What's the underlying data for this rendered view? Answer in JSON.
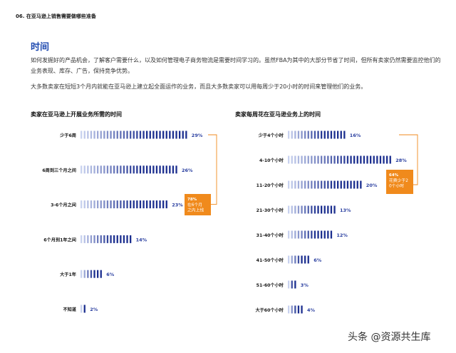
{
  "header": {
    "section_label": "06. 在亚马逊上销售需要做哪些准备"
  },
  "article": {
    "heading": "时间",
    "paragraph1": "如何发掘好的产品机会，了解客户需要什么，以及如何管理电子商务物流是需要时间学习的。虽然FBA为其中的大部分节省了时间，但所有卖家仍然需要监控他们的业务表现、库存、广告，保持竞争优势。",
    "paragraph2": "大多数卖家在短短3个月内就能在亚马逊上建立起全面运作的业务，而且大多数卖家可以用每周少于20小时的时间来管理他们的业务。"
  },
  "colors": {
    "heading": "#1f4ab0",
    "bar_dark": "#1c2f8f",
    "bar_light": "#c9d2ef",
    "accent": "#f08a1c",
    "value_text": "#2a3fa0"
  },
  "chart_data": [
    {
      "type": "bar",
      "title": "卖家在亚马逊上开展业务所需的时间",
      "categories": [
        "少于6周",
        "6周到三个月之间",
        "3-6个月之间",
        "6个月到1年之间",
        "大于1年",
        "不知道"
      ],
      "values": [
        29,
        26,
        23,
        14,
        6,
        2
      ],
      "value_labels": [
        "29%",
        "26%",
        "23%",
        "14%",
        "6%",
        "2%"
      ],
      "callout": {
        "value": "78%",
        "text": "在6个月之内上线"
      }
    },
    {
      "type": "bar",
      "title": "卖家每周花在亚马逊业务上的时间",
      "categories": [
        "少于4个小时",
        "4-10个小时",
        "11-20个小时",
        "21-30个小时",
        "31-40个小时",
        "41-50个小时",
        "51-60个小时",
        "大于60个小时"
      ],
      "values": [
        16,
        28,
        20,
        13,
        12,
        6,
        3,
        4
      ],
      "value_labels": [
        "16%",
        "28%",
        "20%",
        "13%",
        "12%",
        "6%",
        "3%",
        "4%"
      ],
      "callout": {
        "value": "64%",
        "text": "花费少于20个小时"
      }
    }
  ],
  "watermark": "头条 @资源共生库"
}
